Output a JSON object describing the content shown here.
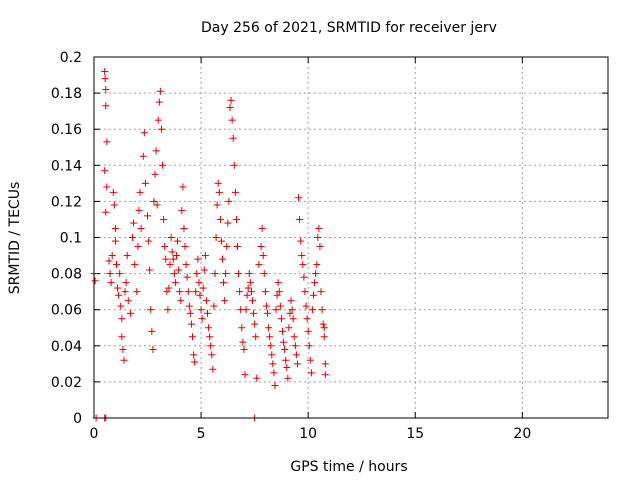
{
  "chart_data": {
    "type": "scatter",
    "title": "Day 256 of 2021, SRMTID for receiver jerv",
    "xlabel": "GPS time / hours",
    "ylabel": "SRMTID / TECUs",
    "xlim": [
      0,
      24
    ],
    "ylim": [
      0,
      0.2
    ],
    "x_ticks": [
      "0",
      "5",
      "10",
      "15",
      "20"
    ],
    "x_tick_values": [
      0,
      5,
      10,
      15,
      20
    ],
    "y_ticks": [
      "0",
      "0.02",
      "0.04",
      "0.06",
      "0.08",
      "0.1",
      "0.12",
      "0.14",
      "0.16",
      "0.18",
      "0.2"
    ],
    "y_tick_values": [
      0,
      0.02,
      0.04,
      0.06,
      0.08,
      0.1,
      0.12,
      0.14,
      0.16,
      0.18,
      0.2
    ],
    "grid": true,
    "marker": "plus",
    "color": "#e00000",
    "series": [
      {
        "points": [
          [
            0.0,
            0.08
          ],
          [
            0.05,
            0.076
          ],
          [
            0.1,
            0.0
          ],
          [
            0.5,
            0.0
          ],
          [
            0.55,
            0.0
          ],
          [
            7.5,
            0.0
          ],
          [
            0.5,
            0.192
          ],
          [
            0.52,
            0.188
          ],
          [
            0.55,
            0.182
          ],
          [
            0.55,
            0.173
          ],
          [
            0.6,
            0.153
          ],
          [
            0.5,
            0.137
          ],
          [
            0.6,
            0.128
          ],
          [
            0.55,
            0.114
          ],
          [
            0.7,
            0.087
          ],
          [
            0.75,
            0.08
          ],
          [
            0.8,
            0.075
          ],
          [
            0.85,
            0.09
          ],
          [
            0.9,
            0.125
          ],
          [
            0.95,
            0.118
          ],
          [
            1.0,
            0.105
          ],
          [
            1.0,
            0.098
          ],
          [
            1.05,
            0.085
          ],
          [
            1.1,
            0.072
          ],
          [
            1.15,
            0.068
          ],
          [
            1.2,
            0.08
          ],
          [
            1.25,
            0.062
          ],
          [
            1.3,
            0.055
          ],
          [
            1.3,
            0.045
          ],
          [
            1.35,
            0.038
          ],
          [
            1.4,
            0.032
          ],
          [
            1.45,
            0.07
          ],
          [
            1.5,
            0.075
          ],
          [
            1.55,
            0.09
          ],
          [
            1.6,
            0.065
          ],
          [
            1.7,
            0.058
          ],
          [
            1.8,
            0.1
          ],
          [
            1.85,
            0.108
          ],
          [
            1.9,
            0.085
          ],
          [
            2.0,
            0.07
          ],
          [
            2.05,
            0.095
          ],
          [
            2.1,
            0.115
          ],
          [
            2.15,
            0.125
          ],
          [
            2.2,
            0.105
          ],
          [
            2.3,
            0.145
          ],
          [
            2.35,
            0.158
          ],
          [
            2.4,
            0.13
          ],
          [
            2.5,
            0.112
          ],
          [
            2.55,
            0.098
          ],
          [
            2.6,
            0.082
          ],
          [
            2.65,
            0.06
          ],
          [
            2.7,
            0.048
          ],
          [
            2.75,
            0.038
          ],
          [
            2.8,
            0.12
          ],
          [
            2.85,
            0.135
          ],
          [
            2.9,
            0.148
          ],
          [
            2.95,
            0.118
          ],
          [
            3.0,
            0.165
          ],
          [
            3.05,
            0.175
          ],
          [
            3.1,
            0.181
          ],
          [
            3.15,
            0.16
          ],
          [
            3.2,
            0.14
          ],
          [
            3.25,
            0.11
          ],
          [
            3.3,
            0.095
          ],
          [
            3.35,
            0.088
          ],
          [
            3.4,
            0.07
          ],
          [
            3.45,
            0.06
          ],
          [
            3.5,
            0.072
          ],
          [
            3.55,
            0.085
          ],
          [
            3.6,
            0.1
          ],
          [
            3.65,
            0.092
          ],
          [
            3.7,
            0.088
          ],
          [
            3.75,
            0.08
          ],
          [
            3.8,
            0.075
          ],
          [
            3.85,
            0.09
          ],
          [
            3.9,
            0.098
          ],
          [
            3.95,
            0.082
          ],
          [
            4.0,
            0.07
          ],
          [
            4.05,
            0.065
          ],
          [
            4.1,
            0.115
          ],
          [
            4.15,
            0.128
          ],
          [
            4.2,
            0.105
          ],
          [
            4.25,
            0.095
          ],
          [
            4.3,
            0.085
          ],
          [
            4.35,
            0.078
          ],
          [
            4.4,
            0.07
          ],
          [
            4.45,
            0.062
          ],
          [
            4.5,
            0.058
          ],
          [
            4.55,
            0.052
          ],
          [
            4.6,
            0.045
          ],
          [
            4.65,
            0.035
          ],
          [
            4.7,
            0.031
          ],
          [
            4.75,
            0.07
          ],
          [
            4.8,
            0.08
          ],
          [
            4.85,
            0.088
          ],
          [
            4.9,
            0.075
          ],
          [
            4.95,
            0.068
          ],
          [
            5.0,
            0.06
          ],
          [
            5.05,
            0.055
          ],
          [
            5.1,
            0.072
          ],
          [
            5.15,
            0.082
          ],
          [
            5.2,
            0.09
          ],
          [
            5.25,
            0.065
          ],
          [
            5.3,
            0.058
          ],
          [
            5.35,
            0.05
          ],
          [
            5.4,
            0.045
          ],
          [
            5.45,
            0.04
          ],
          [
            5.5,
            0.035
          ],
          [
            5.55,
            0.027
          ],
          [
            5.6,
            0.062
          ],
          [
            5.65,
            0.08
          ],
          [
            5.7,
            0.1
          ],
          [
            5.75,
            0.118
          ],
          [
            5.8,
            0.13
          ],
          [
            5.85,
            0.125
          ],
          [
            5.9,
            0.11
          ],
          [
            5.95,
            0.098
          ],
          [
            6.0,
            0.088
          ],
          [
            6.05,
            0.075
          ],
          [
            6.1,
            0.065
          ],
          [
            6.15,
            0.08
          ],
          [
            6.2,
            0.095
          ],
          [
            6.25,
            0.108
          ],
          [
            6.3,
            0.12
          ],
          [
            6.35,
            0.172
          ],
          [
            6.4,
            0.176
          ],
          [
            6.45,
            0.165
          ],
          [
            6.5,
            0.155
          ],
          [
            6.55,
            0.14
          ],
          [
            6.6,
            0.125
          ],
          [
            6.65,
            0.11
          ],
          [
            6.7,
            0.095
          ],
          [
            6.75,
            0.08
          ],
          [
            6.8,
            0.07
          ],
          [
            6.85,
            0.06
          ],
          [
            6.9,
            0.05
          ],
          [
            6.95,
            0.042
          ],
          [
            7.0,
            0.038
          ],
          [
            7.05,
            0.024
          ],
          [
            7.1,
            0.06
          ],
          [
            7.15,
            0.068
          ],
          [
            7.2,
            0.072
          ],
          [
            7.25,
            0.08
          ],
          [
            7.3,
            0.075
          ],
          [
            7.35,
            0.07
          ],
          [
            7.4,
            0.065
          ],
          [
            7.45,
            0.058
          ],
          [
            7.5,
            0.052
          ],
          [
            7.55,
            0.045
          ],
          [
            7.6,
            0.022
          ],
          [
            7.7,
            0.085
          ],
          [
            7.8,
            0.095
          ],
          [
            7.85,
            0.105
          ],
          [
            7.9,
            0.09
          ],
          [
            7.95,
            0.08
          ],
          [
            8.0,
            0.07
          ],
          [
            8.05,
            0.062
          ],
          [
            8.1,
            0.058
          ],
          [
            8.15,
            0.05
          ],
          [
            8.2,
            0.045
          ],
          [
            8.25,
            0.04
          ],
          [
            8.3,
            0.035
          ],
          [
            8.35,
            0.03
          ],
          [
            8.4,
            0.025
          ],
          [
            8.45,
            0.018
          ],
          [
            8.5,
            0.06
          ],
          [
            8.55,
            0.068
          ],
          [
            8.6,
            0.075
          ],
          [
            8.65,
            0.07
          ],
          [
            8.7,
            0.062
          ],
          [
            8.75,
            0.055
          ],
          [
            8.8,
            0.048
          ],
          [
            8.85,
            0.042
          ],
          [
            8.9,
            0.038
          ],
          [
            8.95,
            0.032
          ],
          [
            9.0,
            0.028
          ],
          [
            9.05,
            0.022
          ],
          [
            9.1,
            0.05
          ],
          [
            9.15,
            0.058
          ],
          [
            9.2,
            0.065
          ],
          [
            9.25,
            0.06
          ],
          [
            9.3,
            0.055
          ],
          [
            9.35,
            0.045
          ],
          [
            9.4,
            0.04
          ],
          [
            9.45,
            0.035
          ],
          [
            9.5,
            0.03
          ],
          [
            9.55,
            0.122
          ],
          [
            9.6,
            0.11
          ],
          [
            9.65,
            0.098
          ],
          [
            9.7,
            0.09
          ],
          [
            9.75,
            0.085
          ],
          [
            9.8,
            0.078
          ],
          [
            9.85,
            0.07
          ],
          [
            9.9,
            0.062
          ],
          [
            9.95,
            0.055
          ],
          [
            10.0,
            0.048
          ],
          [
            10.05,
            0.04
          ],
          [
            10.1,
            0.032
          ],
          [
            10.15,
            0.025
          ],
          [
            10.2,
            0.06
          ],
          [
            10.25,
            0.068
          ],
          [
            10.3,
            0.075
          ],
          [
            10.35,
            0.08
          ],
          [
            10.4,
            0.085
          ],
          [
            10.45,
            0.1
          ],
          [
            10.5,
            0.105
          ],
          [
            10.55,
            0.095
          ],
          [
            10.6,
            0.07
          ],
          [
            10.65,
            0.06
          ],
          [
            10.7,
            0.052
          ],
          [
            10.75,
            0.045
          ],
          [
            10.8,
            0.03
          ],
          [
            10.8,
            0.024
          ],
          [
            10.75,
            0.05
          ]
        ]
      }
    ]
  }
}
